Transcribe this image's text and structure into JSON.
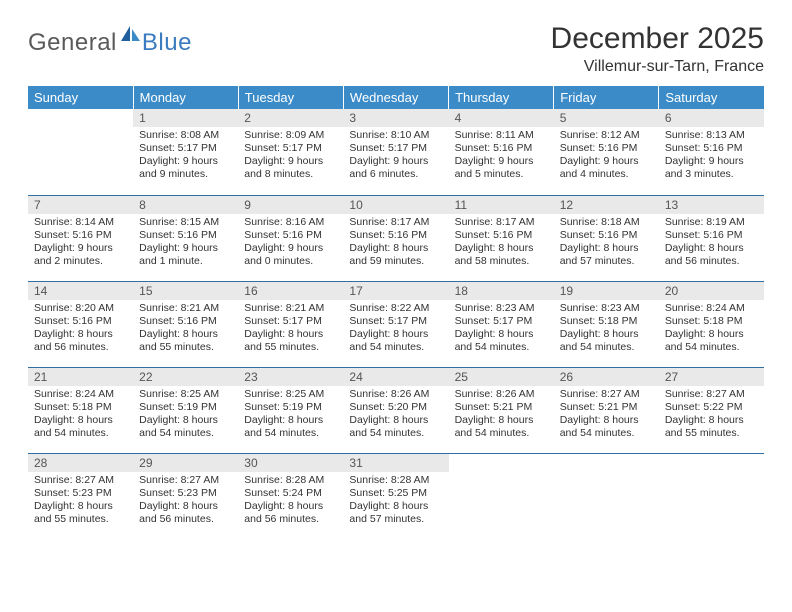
{
  "brand": {
    "part1": "General",
    "part2": "Blue"
  },
  "title": "December 2025",
  "location": "Villemur-sur-Tarn, France",
  "header_bg": "#3b8bc8",
  "daynum_bg": "#e9e9e9",
  "rule_color": "#2f6fa3",
  "columns": [
    "Sunday",
    "Monday",
    "Tuesday",
    "Wednesday",
    "Thursday",
    "Friday",
    "Saturday"
  ],
  "weeks": [
    [
      {
        "n": "",
        "sr": "",
        "ss": "",
        "dl": ""
      },
      {
        "n": "1",
        "sr": "Sunrise: 8:08 AM",
        "ss": "Sunset: 5:17 PM",
        "dl": "Daylight: 9 hours and 9 minutes."
      },
      {
        "n": "2",
        "sr": "Sunrise: 8:09 AM",
        "ss": "Sunset: 5:17 PM",
        "dl": "Daylight: 9 hours and 8 minutes."
      },
      {
        "n": "3",
        "sr": "Sunrise: 8:10 AM",
        "ss": "Sunset: 5:17 PM",
        "dl": "Daylight: 9 hours and 6 minutes."
      },
      {
        "n": "4",
        "sr": "Sunrise: 8:11 AM",
        "ss": "Sunset: 5:16 PM",
        "dl": "Daylight: 9 hours and 5 minutes."
      },
      {
        "n": "5",
        "sr": "Sunrise: 8:12 AM",
        "ss": "Sunset: 5:16 PM",
        "dl": "Daylight: 9 hours and 4 minutes."
      },
      {
        "n": "6",
        "sr": "Sunrise: 8:13 AM",
        "ss": "Sunset: 5:16 PM",
        "dl": "Daylight: 9 hours and 3 minutes."
      }
    ],
    [
      {
        "n": "7",
        "sr": "Sunrise: 8:14 AM",
        "ss": "Sunset: 5:16 PM",
        "dl": "Daylight: 9 hours and 2 minutes."
      },
      {
        "n": "8",
        "sr": "Sunrise: 8:15 AM",
        "ss": "Sunset: 5:16 PM",
        "dl": "Daylight: 9 hours and 1 minute."
      },
      {
        "n": "9",
        "sr": "Sunrise: 8:16 AM",
        "ss": "Sunset: 5:16 PM",
        "dl": "Daylight: 9 hours and 0 minutes."
      },
      {
        "n": "10",
        "sr": "Sunrise: 8:17 AM",
        "ss": "Sunset: 5:16 PM",
        "dl": "Daylight: 8 hours and 59 minutes."
      },
      {
        "n": "11",
        "sr": "Sunrise: 8:17 AM",
        "ss": "Sunset: 5:16 PM",
        "dl": "Daylight: 8 hours and 58 minutes."
      },
      {
        "n": "12",
        "sr": "Sunrise: 8:18 AM",
        "ss": "Sunset: 5:16 PM",
        "dl": "Daylight: 8 hours and 57 minutes."
      },
      {
        "n": "13",
        "sr": "Sunrise: 8:19 AM",
        "ss": "Sunset: 5:16 PM",
        "dl": "Daylight: 8 hours and 56 minutes."
      }
    ],
    [
      {
        "n": "14",
        "sr": "Sunrise: 8:20 AM",
        "ss": "Sunset: 5:16 PM",
        "dl": "Daylight: 8 hours and 56 minutes."
      },
      {
        "n": "15",
        "sr": "Sunrise: 8:21 AM",
        "ss": "Sunset: 5:16 PM",
        "dl": "Daylight: 8 hours and 55 minutes."
      },
      {
        "n": "16",
        "sr": "Sunrise: 8:21 AM",
        "ss": "Sunset: 5:17 PM",
        "dl": "Daylight: 8 hours and 55 minutes."
      },
      {
        "n": "17",
        "sr": "Sunrise: 8:22 AM",
        "ss": "Sunset: 5:17 PM",
        "dl": "Daylight: 8 hours and 54 minutes."
      },
      {
        "n": "18",
        "sr": "Sunrise: 8:23 AM",
        "ss": "Sunset: 5:17 PM",
        "dl": "Daylight: 8 hours and 54 minutes."
      },
      {
        "n": "19",
        "sr": "Sunrise: 8:23 AM",
        "ss": "Sunset: 5:18 PM",
        "dl": "Daylight: 8 hours and 54 minutes."
      },
      {
        "n": "20",
        "sr": "Sunrise: 8:24 AM",
        "ss": "Sunset: 5:18 PM",
        "dl": "Daylight: 8 hours and 54 minutes."
      }
    ],
    [
      {
        "n": "21",
        "sr": "Sunrise: 8:24 AM",
        "ss": "Sunset: 5:18 PM",
        "dl": "Daylight: 8 hours and 54 minutes."
      },
      {
        "n": "22",
        "sr": "Sunrise: 8:25 AM",
        "ss": "Sunset: 5:19 PM",
        "dl": "Daylight: 8 hours and 54 minutes."
      },
      {
        "n": "23",
        "sr": "Sunrise: 8:25 AM",
        "ss": "Sunset: 5:19 PM",
        "dl": "Daylight: 8 hours and 54 minutes."
      },
      {
        "n": "24",
        "sr": "Sunrise: 8:26 AM",
        "ss": "Sunset: 5:20 PM",
        "dl": "Daylight: 8 hours and 54 minutes."
      },
      {
        "n": "25",
        "sr": "Sunrise: 8:26 AM",
        "ss": "Sunset: 5:21 PM",
        "dl": "Daylight: 8 hours and 54 minutes."
      },
      {
        "n": "26",
        "sr": "Sunrise: 8:27 AM",
        "ss": "Sunset: 5:21 PM",
        "dl": "Daylight: 8 hours and 54 minutes."
      },
      {
        "n": "27",
        "sr": "Sunrise: 8:27 AM",
        "ss": "Sunset: 5:22 PM",
        "dl": "Daylight: 8 hours and 55 minutes."
      }
    ],
    [
      {
        "n": "28",
        "sr": "Sunrise: 8:27 AM",
        "ss": "Sunset: 5:23 PM",
        "dl": "Daylight: 8 hours and 55 minutes."
      },
      {
        "n": "29",
        "sr": "Sunrise: 8:27 AM",
        "ss": "Sunset: 5:23 PM",
        "dl": "Daylight: 8 hours and 56 minutes."
      },
      {
        "n": "30",
        "sr": "Sunrise: 8:28 AM",
        "ss": "Sunset: 5:24 PM",
        "dl": "Daylight: 8 hours and 56 minutes."
      },
      {
        "n": "31",
        "sr": "Sunrise: 8:28 AM",
        "ss": "Sunset: 5:25 PM",
        "dl": "Daylight: 8 hours and 57 minutes."
      },
      {
        "n": "",
        "sr": "",
        "ss": "",
        "dl": ""
      },
      {
        "n": "",
        "sr": "",
        "ss": "",
        "dl": ""
      },
      {
        "n": "",
        "sr": "",
        "ss": "",
        "dl": ""
      }
    ]
  ]
}
